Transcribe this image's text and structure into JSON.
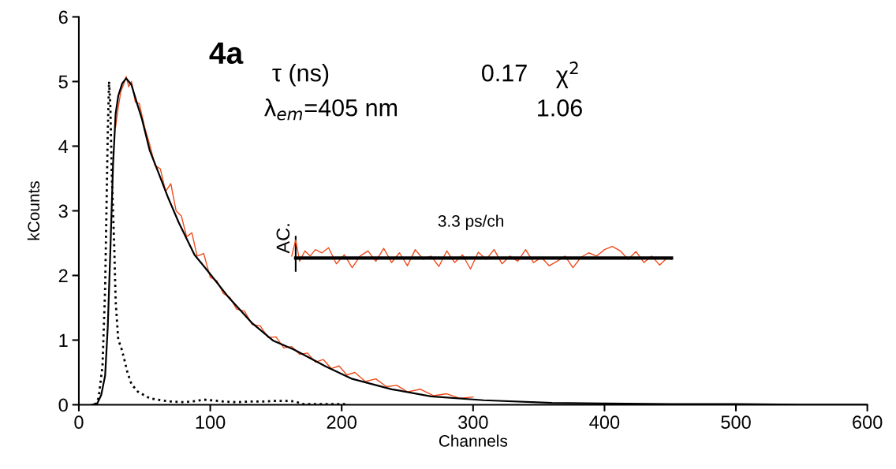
{
  "chart_data": {
    "type": "line",
    "xlabel": "Channels",
    "ylabel": "kCounts",
    "xlim": [
      0,
      600
    ],
    "ylim": [
      0,
      6
    ],
    "xticks": [
      0,
      100,
      200,
      300,
      400,
      500,
      600
    ],
    "yticks": [
      0,
      1,
      2,
      3,
      4,
      5,
      6
    ],
    "grid": false,
    "legend": false,
    "marker": "none",
    "series": [
      {
        "color": "#f04a1a",
        "line_style": "solid",
        "x": [
          28,
          30,
          32,
          34,
          36,
          38,
          40,
          43,
          46,
          50,
          54,
          58,
          62,
          66,
          70,
          74,
          78,
          82,
          86,
          90,
          95,
          100,
          105,
          110,
          115,
          120,
          126,
          132,
          138,
          144,
          150,
          156,
          162,
          168,
          174,
          180,
          186,
          192,
          198,
          204,
          210,
          218,
          226,
          234,
          242,
          250,
          260,
          270,
          280,
          290,
          300
        ],
        "values": [
          4.3,
          4.6,
          4.85,
          4.95,
          5.08,
          4.92,
          5.0,
          4.68,
          4.66,
          4.3,
          4.02,
          3.7,
          3.65,
          3.3,
          3.42,
          3.0,
          2.92,
          2.6,
          2.66,
          2.3,
          2.34,
          1.97,
          1.92,
          1.72,
          1.66,
          1.48,
          1.45,
          1.24,
          1.22,
          1.04,
          1.05,
          0.88,
          0.9,
          0.78,
          0.8,
          0.66,
          0.7,
          0.56,
          0.6,
          0.46,
          0.5,
          0.36,
          0.4,
          0.28,
          0.3,
          0.2,
          0.24,
          0.14,
          0.17,
          0.1,
          0.12
        ]
      },
      {
        "color": "#000000",
        "line_style": "solid",
        "x": [
          10,
          14,
          17,
          20,
          22,
          24,
          26,
          28,
          30,
          33,
          36,
          40,
          44,
          48,
          54,
          60,
          68,
          76,
          88,
          100,
          114,
          132,
          148,
          164,
          188,
          208,
          238,
          268,
          308,
          360,
          400,
          450,
          500,
          550,
          600
        ],
        "values": [
          0,
          0.02,
          0.15,
          0.45,
          1.2,
          2.4,
          3.7,
          4.5,
          4.78,
          4.97,
          5.05,
          4.95,
          4.68,
          4.42,
          3.93,
          3.62,
          3.2,
          2.82,
          2.32,
          2.02,
          1.66,
          1.26,
          0.99,
          0.85,
          0.59,
          0.4,
          0.24,
          0.13,
          0.07,
          0.03,
          0.02,
          0.01,
          0.01,
          0,
          0
        ]
      },
      {
        "color": "#000000",
        "line_style": "dotted",
        "x": [
          12,
          15,
          18,
          20,
          21,
          22,
          23,
          24,
          25,
          26,
          27,
          28,
          30,
          32,
          34,
          37,
          40,
          45,
          54,
          62,
          70,
          80,
          90,
          95,
          100,
          110,
          120,
          130,
          140,
          150,
          160,
          165,
          170,
          185,
          205
        ],
        "values": [
          0,
          0.1,
          0.6,
          1.8,
          3,
          4.2,
          5.0,
          4.6,
          3.6,
          3.0,
          2.4,
          1.6,
          1.0,
          0.9,
          0.75,
          0.5,
          0.32,
          0.2,
          0.1,
          0.07,
          0.05,
          0.04,
          0.06,
          0.08,
          0.07,
          0.05,
          0.04,
          0.05,
          0.05,
          0.06,
          0.06,
          0.05,
          0.01,
          0.01,
          0.01
        ]
      },
      {
        "color": "#f04a1a",
        "line_style": "solid",
        "x": [
          162,
          165,
          168,
          172,
          176,
          180,
          185,
          190,
          196,
          202,
          208,
          214,
          220,
          226,
          232,
          238,
          244,
          250,
          256,
          262,
          268,
          274,
          280,
          286,
          292,
          298,
          304,
          310,
          316,
          322,
          328,
          334,
          340,
          346,
          352,
          358,
          364,
          370,
          376,
          382,
          388,
          394,
          400,
          406,
          412,
          418,
          424,
          430,
          436,
          442,
          448,
          451
        ],
        "values": [
          2.3,
          2.55,
          2.22,
          2.38,
          2.3,
          2.4,
          2.35,
          2.43,
          2.18,
          2.32,
          2.12,
          2.3,
          2.38,
          2.22,
          2.42,
          2.2,
          2.35,
          2.15,
          2.4,
          2.25,
          2.3,
          2.14,
          2.38,
          2.2,
          2.32,
          2.1,
          2.36,
          2.25,
          2.4,
          2.18,
          2.3,
          2.22,
          2.4,
          2.2,
          2.28,
          2.15,
          2.22,
          2.3,
          2.12,
          2.28,
          2.35,
          2.3,
          2.4,
          2.45,
          2.38,
          2.25,
          2.37,
          2.2,
          2.3,
          2.16,
          2.28,
          2.25
        ]
      },
      {
        "color": "#000000",
        "line_style": "solid",
        "x": [
          165,
          451
        ],
        "values": [
          2.27,
          2.27
        ]
      }
    ],
    "annotations": [
      "4a",
      "τ (ns)",
      "0.17",
      "χ$^{2}$",
      "λ$_{em}$=405 nm",
      "1.06",
      "3.3 ps/ch",
      "AC."
    ]
  }
}
